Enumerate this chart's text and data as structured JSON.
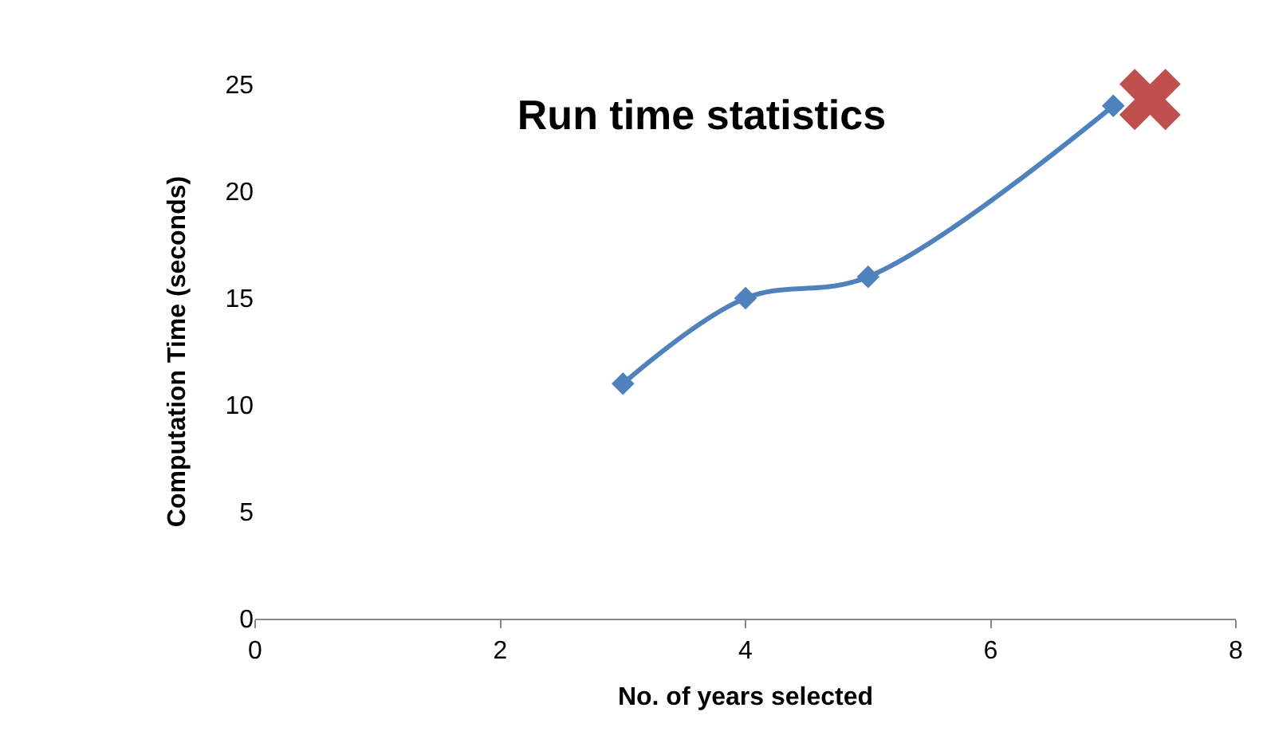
{
  "chart_data": {
    "type": "line",
    "title": "Run time statistics",
    "xlabel": "No. of years selected",
    "ylabel": "Computation Time (seconds)",
    "series": [
      {
        "color": "#4f81bd",
        "x": [
          3,
          4,
          5,
          7
        ],
        "values": [
          11,
          15,
          16,
          24
        ],
        "marker": "diamond"
      },
      {
        "type": "scatter",
        "color": "#c0504d",
        "x": [
          7.3
        ],
        "values": [
          24.3
        ],
        "marker": "cross"
      }
    ],
    "xlim": [
      0,
      8
    ],
    "xticks": [
      0,
      2,
      4,
      6,
      8
    ],
    "ylim": [
      0,
      25
    ],
    "yticks": [
      0,
      5,
      10,
      15,
      20,
      25
    ],
    "legend": false
  }
}
